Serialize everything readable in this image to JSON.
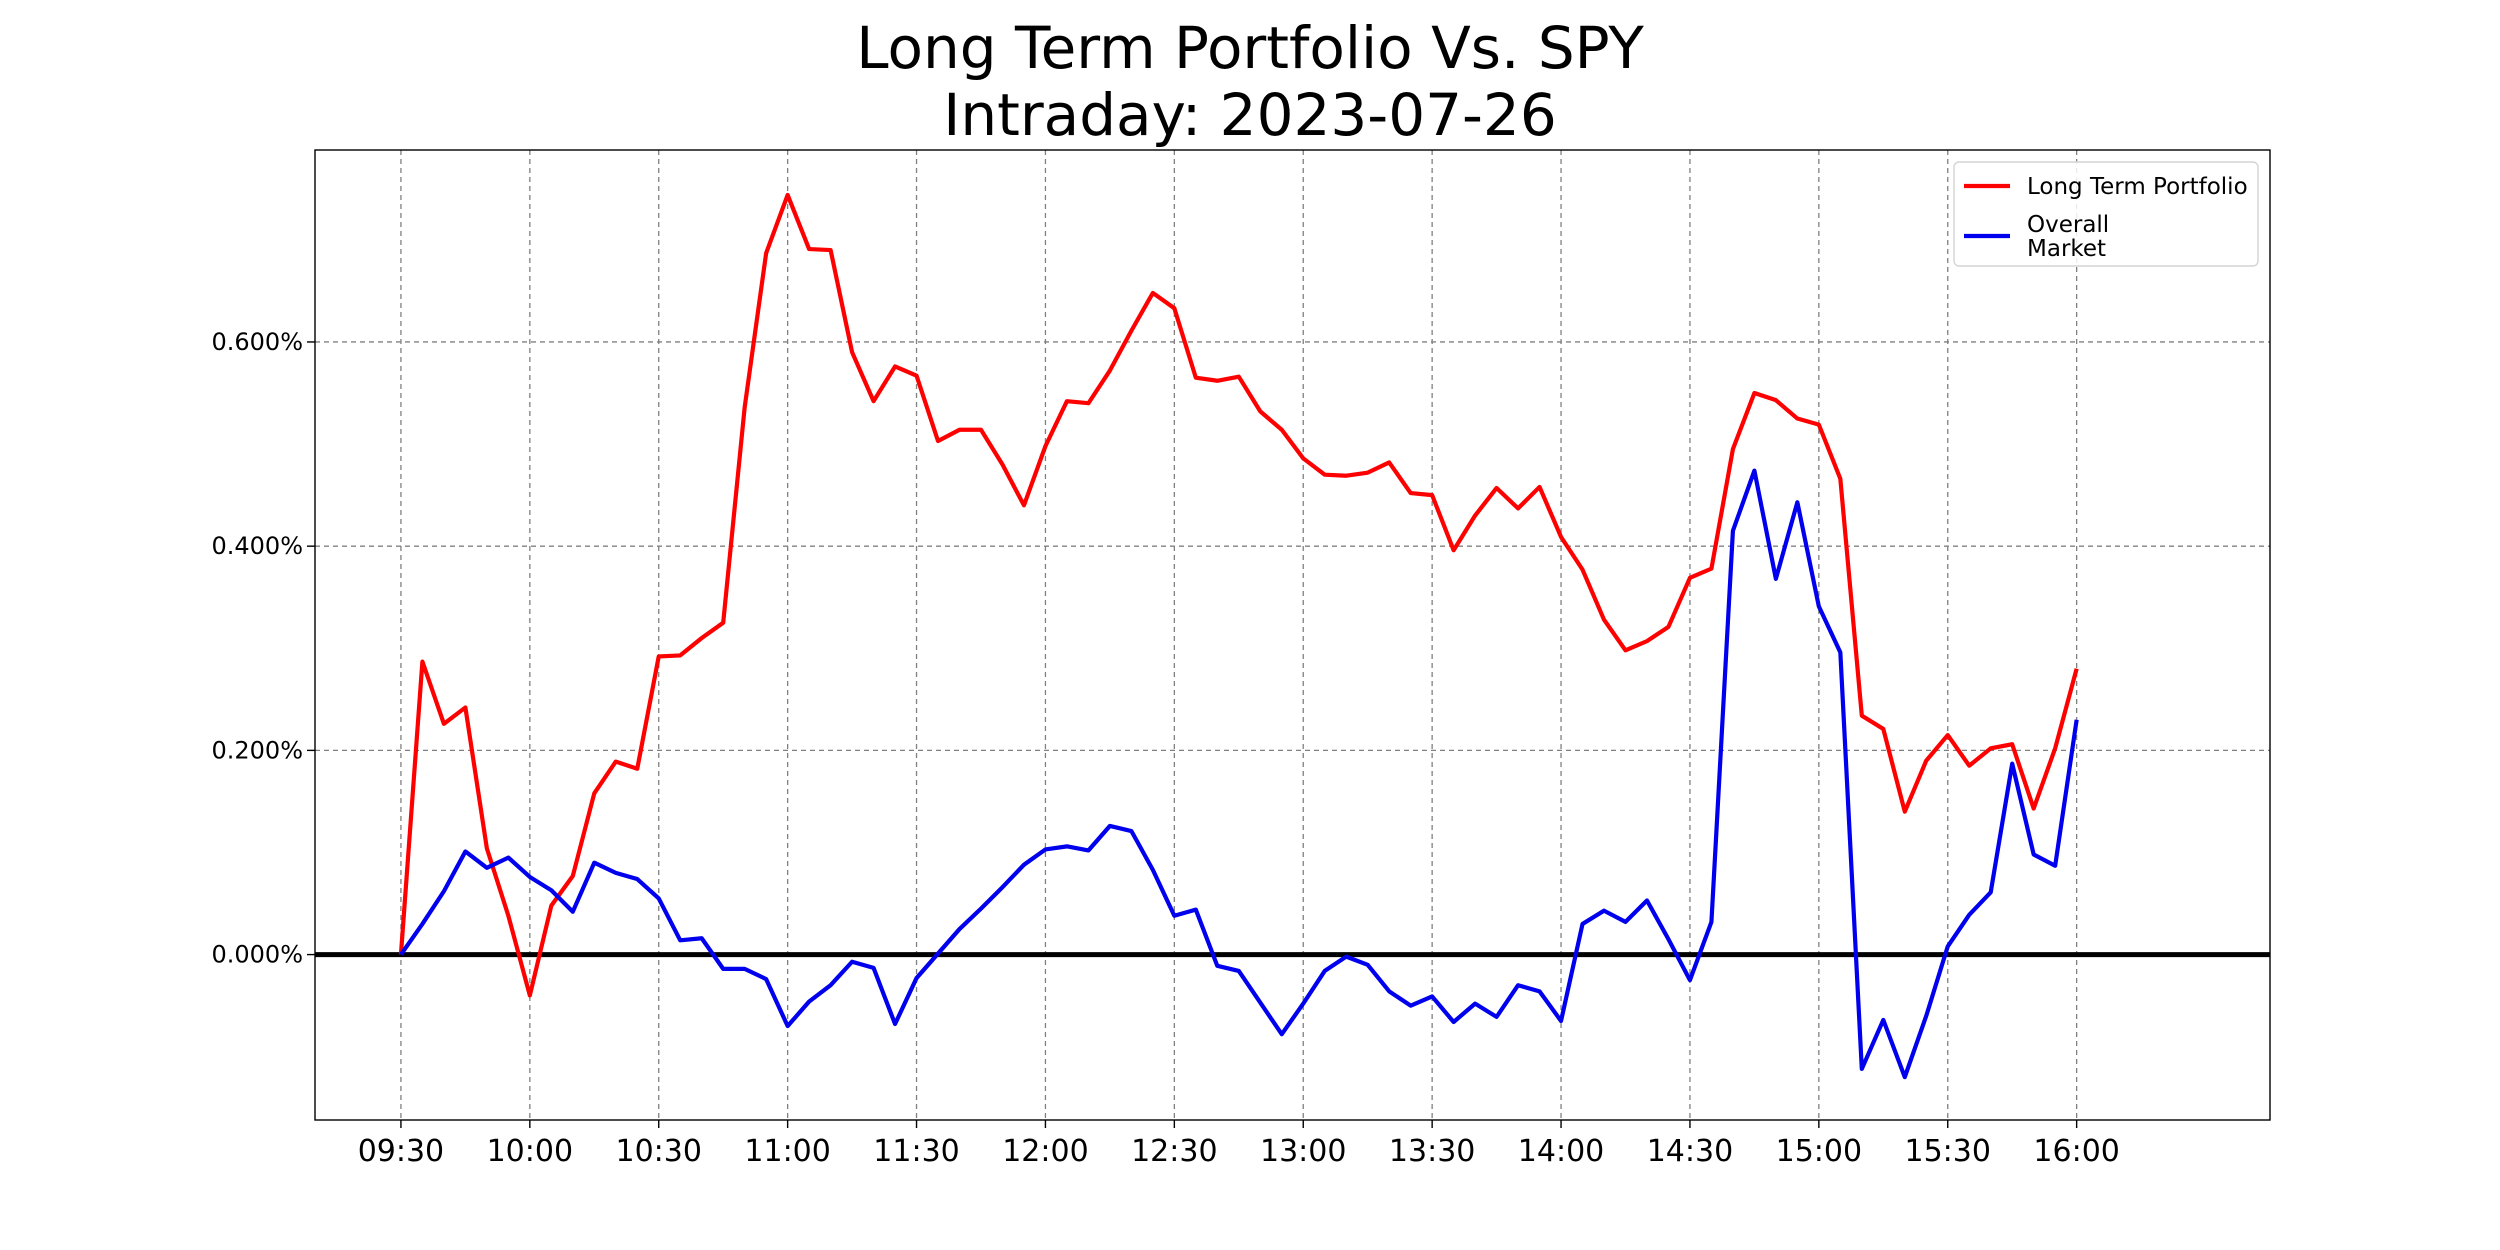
{
  "chart_data": {
    "type": "line",
    "title": [
      "Long Term Portfolio Vs. SPY",
      "Intraday: 2023-07-26"
    ],
    "xlabel": "",
    "ylabel": "",
    "x_minutes_start": 570,
    "x_step_minutes": 5,
    "xlim": [
      550,
      1005
    ],
    "ylim": [
      -0.162,
      0.788
    ],
    "xticks": [
      {
        "label": "09:30",
        "minute": 570
      },
      {
        "label": "10:00",
        "minute": 600
      },
      {
        "label": "10:30",
        "minute": 630
      },
      {
        "label": "11:00",
        "minute": 660
      },
      {
        "label": "11:30",
        "minute": 690
      },
      {
        "label": "12:00",
        "minute": 720
      },
      {
        "label": "12:30",
        "minute": 750
      },
      {
        "label": "13:00",
        "minute": 780
      },
      {
        "label": "13:30",
        "minute": 810
      },
      {
        "label": "14:00",
        "minute": 840
      },
      {
        "label": "14:30",
        "minute": 870
      },
      {
        "label": "15:00",
        "minute": 900
      },
      {
        "label": "15:30",
        "minute": 930
      },
      {
        "label": "16:00",
        "minute": 960
      }
    ],
    "yticks": [
      {
        "label": "0.000%",
        "value": 0.0
      },
      {
        "label": "0.200%",
        "value": 0.2
      },
      {
        "label": "0.400%",
        "value": 0.4
      },
      {
        "label": "0.600%",
        "value": 0.6
      }
    ],
    "grid": true,
    "zero_line": {
      "value": 0.0,
      "color": "#000000"
    },
    "legend_position": "top-right",
    "series": [
      {
        "name": "Long Term Portfolio",
        "legend_lines": [
          "Long Term Portfolio"
        ],
        "color": "#ff0000",
        "values": [
          0.0,
          0.287,
          0.226,
          0.242,
          0.104,
          0.038,
          -0.04,
          0.048,
          0.077,
          0.158,
          0.189,
          0.182,
          0.292,
          0.293,
          0.31,
          0.325,
          0.536,
          0.687,
          0.744,
          0.691,
          0.69,
          0.59,
          0.542,
          0.576,
          0.567,
          0.503,
          0.514,
          0.514,
          0.48,
          0.44,
          0.498,
          0.542,
          0.54,
          0.572,
          0.611,
          0.648,
          0.633,
          0.565,
          0.562,
          0.566,
          0.532,
          0.514,
          0.486,
          0.47,
          0.469,
          0.472,
          0.482,
          0.452,
          0.45,
          0.396,
          0.43,
          0.457,
          0.437,
          0.458,
          0.409,
          0.377,
          0.328,
          0.298,
          0.307,
          0.321,
          0.369,
          0.378,
          0.495,
          0.55,
          0.543,
          0.525,
          0.519,
          0.466,
          0.234,
          0.221,
          0.14,
          0.19,
          0.215,
          0.185,
          0.202,
          0.206,
          0.143,
          0.202,
          0.28
        ]
      },
      {
        "name": "Overall Market",
        "legend_lines": [
          "Overall",
          "Market"
        ],
        "color": "#0000ee",
        "values": [
          0.0,
          0.03,
          0.062,
          0.101,
          0.085,
          0.095,
          0.076,
          0.063,
          0.042,
          0.09,
          0.08,
          0.074,
          0.055,
          0.014,
          0.016,
          -0.014,
          -0.014,
          -0.024,
          -0.07,
          -0.046,
          -0.03,
          -0.007,
          -0.013,
          -0.068,
          -0.023,
          0.001,
          0.025,
          0.045,
          0.066,
          0.088,
          0.103,
          0.106,
          0.102,
          0.126,
          0.121,
          0.083,
          0.038,
          0.044,
          -0.011,
          -0.016,
          -0.047,
          -0.078,
          -0.048,
          -0.016,
          -0.002,
          -0.01,
          -0.036,
          -0.05,
          -0.041,
          -0.066,
          -0.048,
          -0.061,
          -0.03,
          -0.036,
          -0.065,
          0.03,
          0.043,
          0.032,
          0.053,
          0.015,
          -0.025,
          0.032,
          0.415,
          0.474,
          0.368,
          0.443,
          0.341,
          0.296,
          -0.112,
          -0.064,
          -0.12,
          -0.06,
          0.008,
          0.039,
          0.061,
          0.187,
          0.098,
          0.087,
          0.23
        ]
      }
    ]
  }
}
